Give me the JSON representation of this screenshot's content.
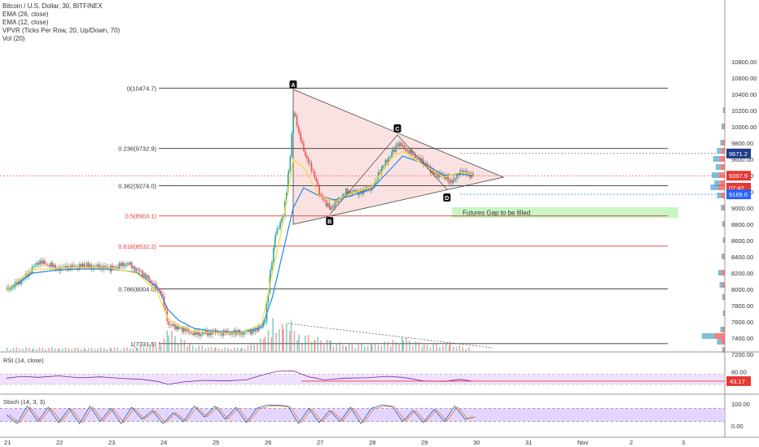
{
  "header": {
    "title": "Bitcoin / U.S. Dollar, 30, BITFINEX",
    "indicators": [
      "EMA (26, close)",
      "EMA (12, close)",
      "VPVR (Ticks Per Row, 20, Up/Down, 70)",
      "Vol (20)"
    ]
  },
  "chart_data": {
    "type": "candlestick",
    "x_ticks": [
      "21",
      "22",
      "23",
      "24",
      "25",
      "26",
      "27",
      "28",
      "29",
      "30",
      "31",
      "Nov",
      "2",
      "3"
    ],
    "y_ticks": [
      10800,
      10600,
      10400,
      10200,
      10000,
      9800,
      9600,
      9400,
      9200,
      9000,
      8800,
      8600,
      8400,
      8200,
      8000,
      7800,
      7600,
      7400,
      7200
    ],
    "price_labels": {
      "last": "9397.9",
      "countdown": "07:42",
      "upper": "9671.2",
      "lower": "9169.0"
    },
    "fib_levels": [
      {
        "label": "0(10474.7)",
        "value": 10474.7,
        "color": "#333333"
      },
      {
        "label": "0.236(9732.9)",
        "value": 9732.9,
        "color": "#333333"
      },
      {
        "label": "0.382(9274.0)",
        "value": 9274.0,
        "color": "#333333"
      },
      {
        "label": "0.5(8903.1)",
        "value": 8903.1,
        "color": "#e53935"
      },
      {
        "label": "0.618(8532.2)",
        "value": 8532.2,
        "color": "#e53935"
      },
      {
        "label": "0.786(8004.0)",
        "value": 8004.0,
        "color": "#333333"
      },
      {
        "label": "1(7331.5)",
        "value": 7331.5,
        "color": "#333333"
      }
    ],
    "pattern_points": [
      {
        "label": "A",
        "day": 26.5,
        "price": 10460
      },
      {
        "label": "B",
        "day": 27.2,
        "price": 8920
      },
      {
        "label": "C",
        "day": 28.5,
        "price": 9900
      },
      {
        "label": "D",
        "day": 29.45,
        "price": 9230
      }
    ],
    "annotation": "Futures Gap to be filled",
    "price_path": [
      [
        21.0,
        7990
      ],
      [
        21.3,
        8120
      ],
      [
        21.6,
        8340
      ],
      [
        22.0,
        8260
      ],
      [
        22.5,
        8290
      ],
      [
        23.0,
        8260
      ],
      [
        23.3,
        8320
      ],
      [
        23.6,
        8200
      ],
      [
        23.8,
        8060
      ],
      [
        23.95,
        7960
      ],
      [
        24.1,
        7560
      ],
      [
        24.3,
        7530
      ],
      [
        24.6,
        7450
      ],
      [
        25.0,
        7470
      ],
      [
        25.4,
        7460
      ],
      [
        25.8,
        7500
      ],
      [
        25.95,
        7620
      ],
      [
        26.05,
        8200
      ],
      [
        26.15,
        8700
      ],
      [
        26.3,
        8900
      ],
      [
        26.4,
        9450
      ],
      [
        26.5,
        10200
      ],
      [
        26.6,
        9900
      ],
      [
        26.75,
        9600
      ],
      [
        26.9,
        9400
      ],
      [
        27.0,
        9150
      ],
      [
        27.2,
        9000
      ],
      [
        27.35,
        9100
      ],
      [
        27.5,
        9200
      ],
      [
        27.75,
        9200
      ],
      [
        28.0,
        9250
      ],
      [
        28.2,
        9500
      ],
      [
        28.4,
        9700
      ],
      [
        28.5,
        9800
      ],
      [
        28.65,
        9720
      ],
      [
        28.8,
        9650
      ],
      [
        29.0,
        9550
      ],
      [
        29.2,
        9430
      ],
      [
        29.4,
        9380
      ],
      [
        29.5,
        9300
      ],
      [
        29.6,
        9380
      ],
      [
        29.7,
        9460
      ],
      [
        29.85,
        9420
      ],
      [
        29.95,
        9397.9
      ]
    ],
    "ema26_path": [
      [
        21.0,
        7990
      ],
      [
        21.5,
        8200
      ],
      [
        22.0,
        8240
      ],
      [
        22.5,
        8250
      ],
      [
        23.0,
        8250
      ],
      [
        23.5,
        8210
      ],
      [
        23.9,
        8020
      ],
      [
        24.1,
        7750
      ],
      [
        24.3,
        7620
      ],
      [
        24.6,
        7520
      ],
      [
        25.0,
        7480
      ],
      [
        25.5,
        7470
      ],
      [
        25.9,
        7530
      ],
      [
        26.1,
        7900
      ],
      [
        26.3,
        8450
      ],
      [
        26.5,
        9000
      ],
      [
        26.7,
        9250
      ],
      [
        27.0,
        9150
      ],
      [
        27.3,
        9100
      ],
      [
        27.6,
        9150
      ],
      [
        28.0,
        9230
      ],
      [
        28.4,
        9500
      ],
      [
        28.6,
        9640
      ],
      [
        29.0,
        9550
      ],
      [
        29.4,
        9400
      ],
      [
        29.7,
        9420
      ],
      [
        29.95,
        9400
      ]
    ],
    "ema12_path": [
      [
        21.0,
        7990
      ],
      [
        21.5,
        8240
      ],
      [
        22.0,
        8260
      ],
      [
        22.5,
        8270
      ],
      [
        23.0,
        8260
      ],
      [
        23.5,
        8200
      ],
      [
        23.9,
        7960
      ],
      [
        24.1,
        7640
      ],
      [
        24.3,
        7560
      ],
      [
        24.6,
        7480
      ],
      [
        25.0,
        7470
      ],
      [
        25.5,
        7460
      ],
      [
        25.9,
        7580
      ],
      [
        26.1,
        8200
      ],
      [
        26.3,
        8800
      ],
      [
        26.5,
        9600
      ],
      [
        26.7,
        9500
      ],
      [
        27.0,
        9150
      ],
      [
        27.3,
        9080
      ],
      [
        27.6,
        9180
      ],
      [
        28.0,
        9260
      ],
      [
        28.4,
        9620
      ],
      [
        28.6,
        9700
      ],
      [
        29.0,
        9530
      ],
      [
        29.4,
        9380
      ],
      [
        29.7,
        9440
      ],
      [
        29.95,
        9410
      ]
    ],
    "volume_profile": [
      {
        "price": 10200,
        "w": 3
      },
      {
        "price": 10000,
        "w": 5
      },
      {
        "price": 9800,
        "w": 7
      },
      {
        "price": 9700,
        "w": 12
      },
      {
        "price": 9600,
        "w": 18
      },
      {
        "price": 9500,
        "w": 14
      },
      {
        "price": 9400,
        "w": 20
      },
      {
        "price": 9300,
        "w": 16
      },
      {
        "price": 9250,
        "w": 22
      },
      {
        "price": 9150,
        "w": 12
      },
      {
        "price": 9000,
        "w": 6
      },
      {
        "price": 8800,
        "w": 4
      },
      {
        "price": 8600,
        "w": 3
      },
      {
        "price": 8400,
        "w": 5
      },
      {
        "price": 8200,
        "w": 10
      },
      {
        "price": 8050,
        "w": 8
      },
      {
        "price": 7900,
        "w": 4
      },
      {
        "price": 7700,
        "w": 3
      },
      {
        "price": 7500,
        "w": 7
      },
      {
        "price": 7420,
        "w": 35
      },
      {
        "price": 7350,
        "w": 12
      },
      {
        "price": 7250,
        "w": 4
      }
    ],
    "volume": [
      [
        21.0,
        1
      ],
      [
        21.5,
        1
      ],
      [
        22.0,
        1
      ],
      [
        22.5,
        1
      ],
      [
        23.0,
        1
      ],
      [
        23.5,
        1
      ],
      [
        23.95,
        3
      ],
      [
        24.1,
        6
      ],
      [
        24.5,
        2
      ],
      [
        25.0,
        1
      ],
      [
        25.5,
        1
      ],
      [
        25.95,
        4
      ],
      [
        26.1,
        9
      ],
      [
        26.3,
        7
      ],
      [
        26.45,
        8
      ],
      [
        26.6,
        5
      ],
      [
        26.9,
        4
      ],
      [
        27.2,
        3
      ],
      [
        27.5,
        2
      ],
      [
        28.0,
        2
      ],
      [
        28.4,
        3
      ],
      [
        28.6,
        4
      ],
      [
        29.0,
        2
      ],
      [
        29.5,
        2
      ],
      [
        29.9,
        1
      ]
    ],
    "rsi": {
      "label": "RSI (14, close)",
      "value": "43.17",
      "ticks": [
        "80.00"
      ],
      "path": [
        [
          21.0,
          55
        ],
        [
          21.3,
          62
        ],
        [
          21.6,
          58
        ],
        [
          22.0,
          64
        ],
        [
          22.4,
          56
        ],
        [
          22.8,
          60
        ],
        [
          23.2,
          54
        ],
        [
          23.6,
          50
        ],
        [
          23.9,
          42
        ],
        [
          24.1,
          30
        ],
        [
          24.4,
          40
        ],
        [
          24.8,
          46
        ],
        [
          25.2,
          44
        ],
        [
          25.6,
          48
        ],
        [
          25.95,
          70
        ],
        [
          26.2,
          82
        ],
        [
          26.5,
          84
        ],
        [
          26.8,
          60
        ],
        [
          27.1,
          48
        ],
        [
          27.5,
          55
        ],
        [
          27.9,
          56
        ],
        [
          28.3,
          62
        ],
        [
          28.6,
          58
        ],
        [
          29.0,
          44
        ],
        [
          29.4,
          42
        ],
        [
          29.7,
          50
        ],
        [
          29.95,
          43
        ]
      ]
    },
    "stoch": {
      "label": "Stoch (14, 3, 3)",
      "ticks": [
        "100.00",
        "0.00"
      ],
      "path": [
        [
          21.0,
          50
        ],
        [
          21.2,
          10
        ],
        [
          21.4,
          90
        ],
        [
          21.6,
          20
        ],
        [
          21.8,
          85
        ],
        [
          22.0,
          15
        ],
        [
          22.2,
          80
        ],
        [
          22.4,
          10
        ],
        [
          22.6,
          90
        ],
        [
          22.8,
          20
        ],
        [
          23.0,
          80
        ],
        [
          23.2,
          10
        ],
        [
          23.4,
          85
        ],
        [
          23.6,
          30
        ],
        [
          23.8,
          70
        ],
        [
          24.0,
          10
        ],
        [
          24.2,
          60
        ],
        [
          24.4,
          20
        ],
        [
          24.6,
          90
        ],
        [
          24.8,
          40
        ],
        [
          25.0,
          90
        ],
        [
          25.2,
          30
        ],
        [
          25.4,
          85
        ],
        [
          25.6,
          15
        ],
        [
          25.8,
          80
        ],
        [
          26.0,
          95
        ],
        [
          26.2,
          95
        ],
        [
          26.4,
          90
        ],
        [
          26.6,
          10
        ],
        [
          26.8,
          80
        ],
        [
          27.0,
          15
        ],
        [
          27.2,
          70
        ],
        [
          27.4,
          20
        ],
        [
          27.6,
          85
        ],
        [
          27.8,
          10
        ],
        [
          28.0,
          80
        ],
        [
          28.2,
          95
        ],
        [
          28.4,
          90
        ],
        [
          28.6,
          20
        ],
        [
          28.8,
          70
        ],
        [
          29.0,
          15
        ],
        [
          29.2,
          75
        ],
        [
          29.4,
          20
        ],
        [
          29.6,
          90
        ],
        [
          29.8,
          30
        ],
        [
          29.95,
          40
        ]
      ]
    }
  },
  "colors": {
    "up": "#26a69a",
    "down": "#ef5350",
    "ema26": "#1e88e5",
    "ema12": "#fdd835",
    "triangle": "#fadbdb",
    "gap": "#c8f7c5",
    "rsi_band": "#e9d5ff",
    "stoch_band": "#dccbff",
    "last_price": "#e53935",
    "blue_line": "#2962ff"
  }
}
